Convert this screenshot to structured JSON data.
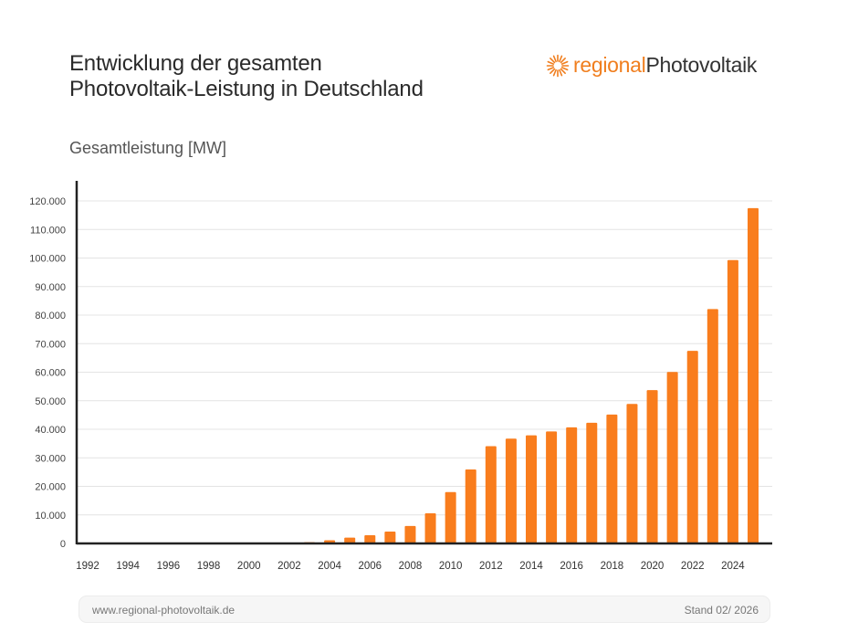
{
  "title_lines": [
    "Entwicklung der gesamten",
    "Photovoltaik-Leistung in Deutschland"
  ],
  "logo": {
    "part1": "regional",
    "part2": "Photovoltaik",
    "icon": "sun-icon",
    "color_primary": "#f07e1e",
    "color_secondary": "#333333"
  },
  "footer": {
    "website": "www.regional-photovoltaik.de",
    "date": "Stand 02/ 2026"
  },
  "chart_data": {
    "type": "bar",
    "title": "",
    "ylabel": "Gesamtleistung [MW]",
    "xlabel": "",
    "ylim": [
      0,
      120000
    ],
    "grid": true,
    "bar_color": "#f97d1d",
    "y_ticks": [
      "0",
      "10.000",
      "20.000",
      "30.000",
      "40.000",
      "50.000",
      "60.000",
      "70.000",
      "80.000",
      "90.000",
      "100.000",
      "110.000",
      "120.000"
    ],
    "x_tick_labels": [
      "1992",
      "1994",
      "1996",
      "1998",
      "2000",
      "2002",
      "2004",
      "2006",
      "2008",
      "2010",
      "2012",
      "2014",
      "2016",
      "2018",
      "2020",
      "2022",
      "2024"
    ],
    "categories": [
      "1992",
      "1993",
      "1994",
      "1995",
      "1996",
      "1997",
      "1998",
      "1999",
      "2000",
      "2001",
      "2002",
      "2003",
      "2004",
      "2005",
      "2006",
      "2007",
      "2008",
      "2009",
      "2010",
      "2011",
      "2012",
      "2013",
      "2014",
      "2015",
      "2016",
      "2017",
      "2018",
      "2019",
      "2020",
      "2021",
      "2022",
      "2023",
      "2024",
      "2025"
    ],
    "values": [
      3,
      9,
      12,
      18,
      28,
      42,
      54,
      70,
      114,
      195,
      296,
      435,
      1105,
      2056,
      2899,
      4170,
      6120,
      10566,
      18006,
      25916,
      34077,
      36710,
      37900,
      39224,
      40679,
      42293,
      45158,
      48864,
      53721,
      60062,
      67479,
      82137,
      99300,
      117500
    ]
  }
}
